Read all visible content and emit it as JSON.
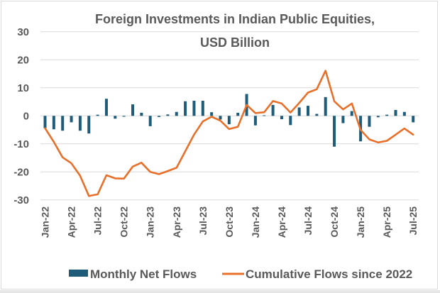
{
  "chart_data": {
    "type": "bar+line",
    "title": "Foreign Investments in Indian Public Equities,",
    "subtitle": "USD Billion",
    "xlabel": "",
    "ylabel": "",
    "ylim": [
      -30,
      30
    ],
    "yticks": [
      30,
      20,
      10,
      0,
      -10,
      -20,
      -30
    ],
    "grid": true,
    "legend_position": "bottom",
    "colors": {
      "bars": "#1f5c7a",
      "line": "#e8702a"
    },
    "categories": [
      "Jan-22",
      "Feb-22",
      "Mar-22",
      "Apr-22",
      "May-22",
      "Jun-22",
      "Jul-22",
      "Aug-22",
      "Sep-22",
      "Oct-22",
      "Nov-22",
      "Dec-22",
      "Jan-23",
      "Feb-23",
      "Mar-23",
      "Apr-23",
      "May-23",
      "Jun-23",
      "Jul-23",
      "Aug-23",
      "Sep-23",
      "Oct-23",
      "Nov-23",
      "Dec-23",
      "Jan-24",
      "Feb-24",
      "Mar-24",
      "Apr-24",
      "May-24",
      "Jun-24",
      "Jul-24",
      "Aug-24",
      "Sep-24",
      "Oct-24",
      "Nov-24",
      "Dec-24",
      "Jan-25",
      "Feb-25",
      "Mar-25",
      "Apr-25",
      "May-25",
      "Jun-25",
      "Jul-25"
    ],
    "xtick_labels": [
      "Jan-22",
      "Apr-22",
      "Jul-22",
      "Oct-22",
      "Jan-23",
      "Apr-23",
      "Jul-23",
      "Oct-23",
      "Jan-24",
      "Apr-24",
      "Jul-24",
      "Oct-24",
      "Jan-25",
      "Apr-25",
      "Jul-25"
    ],
    "series": [
      {
        "name": "Monthly Net Flows",
        "type": "bar",
        "values": [
          -4.4,
          -4.8,
          -5.3,
          -2.3,
          -5.3,
          -6.3,
          0.4,
          6.1,
          -1.0,
          -0.3,
          4.1,
          1.1,
          -3.7,
          -0.4,
          0.5,
          1.4,
          5.2,
          5.4,
          5.4,
          1.3,
          -1.3,
          -3.0,
          1.1,
          7.8,
          -3.4,
          0.2,
          3.9,
          -1.2,
          -3.3,
          3.0,
          3.6,
          0.7,
          6.7,
          -11.0,
          -2.6,
          1.7,
          -9.1,
          -3.9,
          -0.5,
          0.4,
          2.1,
          1.4,
          -2.3
        ]
      },
      {
        "name": "Cumulative Flows since 2022",
        "type": "line",
        "values": [
          -4.4,
          -9.3,
          -14.8,
          -16.9,
          -21.4,
          -28.6,
          -28.0,
          -21.2,
          -22.3,
          -22.4,
          -18.1,
          -16.7,
          -20.0,
          -20.8,
          -19.7,
          -18.5,
          -12.6,
          -6.7,
          -2.0,
          -0.3,
          -1.7,
          -4.7,
          -3.9,
          3.9,
          1.0,
          1.3,
          5.3,
          4.4,
          1.2,
          4.6,
          8.3,
          9.5,
          16.1,
          5.2,
          2.3,
          4.4,
          -5.0,
          -8.4,
          -9.5,
          -8.9,
          -6.7,
          -4.5,
          -6.7
        ]
      }
    ]
  }
}
